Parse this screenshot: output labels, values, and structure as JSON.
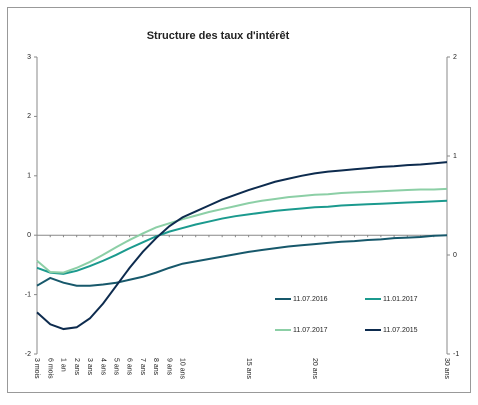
{
  "chart_data": {
    "type": "line",
    "title": "Structure des taux d'intérêt",
    "categories": [
      "3 mois",
      "6 mois",
      "1 an",
      "2 ans",
      "3 ans",
      "4 ans",
      "5 ans",
      "6 ans",
      "7 ans",
      "8 ans",
      "9 ans",
      "10 ans",
      null,
      null,
      null,
      null,
      "15 ans",
      null,
      null,
      null,
      null,
      "20 ans",
      null,
      null,
      null,
      null,
      null,
      null,
      null,
      null,
      null,
      "30 ans"
    ],
    "series": [
      {
        "name": "11.07.2016",
        "color": "#17586b",
        "values": [
          -0.85,
          -0.72,
          -0.8,
          -0.85,
          -0.85,
          -0.83,
          -0.8,
          -0.75,
          -0.7,
          -0.63,
          -0.55,
          -0.48,
          -0.44,
          -0.4,
          -0.36,
          -0.32,
          -0.28,
          -0.25,
          -0.22,
          -0.19,
          -0.17,
          -0.15,
          -0.13,
          -0.11,
          -0.1,
          -0.08,
          -0.07,
          -0.05,
          -0.04,
          -0.03,
          -0.01,
          0
        ]
      },
      {
        "name": "11.01.2017",
        "color": "#1b9a8e",
        "values": [
          -0.55,
          -0.63,
          -0.65,
          -0.6,
          -0.52,
          -0.43,
          -0.33,
          -0.22,
          -0.12,
          -0.02,
          0.06,
          0.12,
          0.18,
          0.23,
          0.28,
          0.32,
          0.35,
          0.38,
          0.41,
          0.43,
          0.45,
          0.47,
          0.48,
          0.5,
          0.51,
          0.52,
          0.53,
          0.54,
          0.55,
          0.56,
          0.57,
          0.58
        ]
      },
      {
        "name": "11.07.2017",
        "color": "#8ccfa6",
        "values": [
          -0.43,
          -0.62,
          -0.63,
          -0.55,
          -0.45,
          -0.33,
          -0.2,
          -0.08,
          0.03,
          0.13,
          0.2,
          0.27,
          0.33,
          0.39,
          0.44,
          0.49,
          0.54,
          0.58,
          0.61,
          0.64,
          0.66,
          0.68,
          0.69,
          0.71,
          0.72,
          0.73,
          0.74,
          0.75,
          0.76,
          0.77,
          0.77,
          0.78
        ]
      },
      {
        "name": "11.07.2015",
        "color": "#0d2b4e",
        "values": [
          -1.3,
          -1.5,
          -1.58,
          -1.55,
          -1.4,
          -1.15,
          -0.85,
          -0.55,
          -0.28,
          -0.05,
          0.15,
          0.3,
          0.4,
          0.5,
          0.6,
          0.68,
          0.76,
          0.83,
          0.9,
          0.95,
          1.0,
          1.04,
          1.07,
          1.09,
          1.11,
          1.13,
          1.15,
          1.16,
          1.18,
          1.19,
          1.21,
          1.23
        ]
      }
    ],
    "ylim": [
      -2,
      3
    ],
    "yticks": [
      -2,
      -1,
      0,
      1,
      2,
      3
    ],
    "y2lim": [
      -1,
      2
    ],
    "y2ticks": [
      -1,
      0,
      1,
      2
    ],
    "legend": "lower right"
  }
}
